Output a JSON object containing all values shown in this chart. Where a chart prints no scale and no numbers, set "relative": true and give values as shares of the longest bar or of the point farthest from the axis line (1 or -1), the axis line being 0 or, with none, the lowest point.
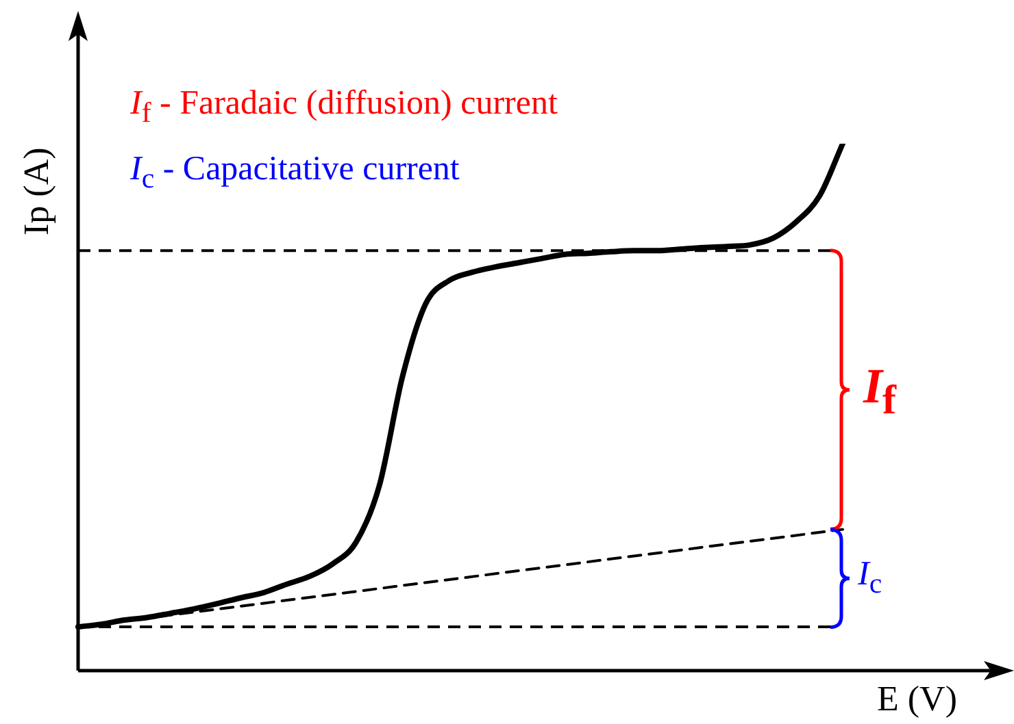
{
  "chart_data": {
    "type": "line",
    "relative": true,
    "xlabel": "E (V)",
    "ylabel": "Ip (A)",
    "categories": [
      null,
      null,
      null,
      null,
      null,
      null,
      null,
      null,
      null,
      null,
      null,
      null,
      null,
      null,
      null,
      null,
      null,
      null,
      null,
      null,
      null,
      null,
      null,
      null,
      null,
      null,
      null,
      null,
      null,
      null,
      null,
      null,
      null,
      null
    ],
    "series": [
      {
        "color": "#000000",
        "values": [
          0.083,
          0.088,
          0.096,
          0.101,
          0.109,
          0.117,
          0.127,
          0.138,
          0.148,
          0.164,
          0.179,
          0.203,
          0.244,
          0.351,
          0.558,
          0.696,
          0.74,
          0.756,
          0.766,
          0.774,
          0.782,
          0.79,
          0.792,
          0.795,
          0.797,
          0.797,
          0.8,
          0.803,
          0.805,
          0.808,
          0.821,
          0.852,
          0.901,
          1
        ]
      },
      {
        "color": "#000000",
        "line_style": "dashed",
        "values": [
          0.083,
          null,
          null,
          null,
          null,
          null,
          null,
          null,
          null,
          null,
          null,
          null,
          null,
          null,
          null,
          null,
          null,
          null,
          null,
          null,
          null,
          null,
          null,
          null,
          null,
          null,
          null,
          null,
          null,
          null,
          null,
          null,
          null,
          0.268
        ]
      }
    ],
    "ref_lines": [
      {
        "axis": "y",
        "value": 0.797,
        "color": "#000000",
        "line_style": "dashed"
      },
      {
        "axis": "y",
        "value": 0.083,
        "color": "#000000",
        "line_style": "dashed"
      }
    ],
    "annotations": [
      "I$_{f}$ - Faradaic (diffusion) current",
      "I$_{c}$ - Capacitative current",
      "I$_{f}$",
      "I$_{c}$"
    ],
    "legend": false,
    "marker": "none",
    "line_style": "solid"
  }
}
